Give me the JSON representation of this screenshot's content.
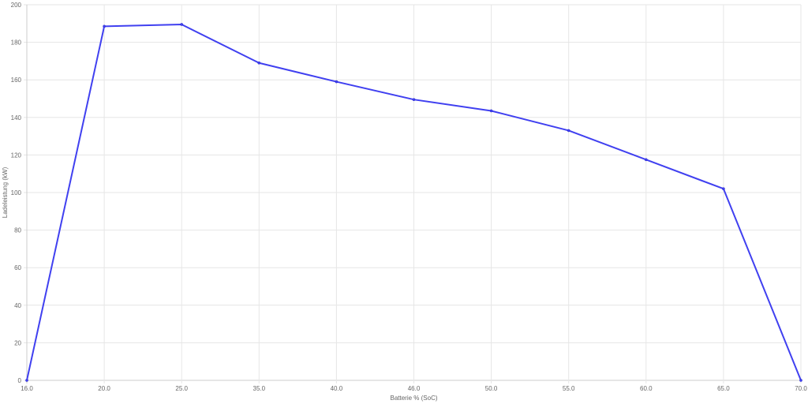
{
  "chart_data": {
    "type": "line",
    "title": "",
    "xlabel": "Batterie % (SoC)",
    "ylabel": "Ladeleistung (kW)",
    "categories": [
      "16.0",
      "20.0",
      "25.0",
      "35.0",
      "40.0",
      "46.0",
      "50.0",
      "55.0",
      "60.0",
      "65.0",
      "70.0"
    ],
    "series": [
      {
        "values": [
          0,
          188.5,
          189.5,
          169,
          159,
          149.5,
          143.5,
          133,
          117.5,
          102,
          0
        ]
      }
    ],
    "ylim": [
      0,
      200
    ],
    "yticks": [
      "0",
      "20",
      "40",
      "60",
      "80",
      "100",
      "120",
      "140",
      "160",
      "180",
      "200"
    ],
    "grid": true,
    "legend": "none",
    "line_color": "#4040f0"
  }
}
